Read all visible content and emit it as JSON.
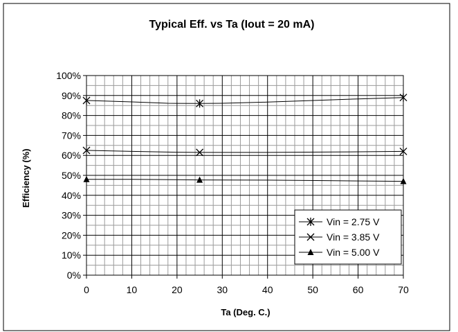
{
  "chart_data": {
    "type": "line",
    "title": "Typical Eff. vs Ta (Iout = 20 mA)",
    "xlabel": "Ta (Deg. C.)",
    "ylabel": "Efficiency (%)",
    "xlim": [
      0,
      70
    ],
    "ylim": [
      0,
      100
    ],
    "x_ticks": [
      0,
      10,
      20,
      30,
      40,
      50,
      60,
      70
    ],
    "y_ticks": [
      0,
      10,
      20,
      30,
      40,
      50,
      60,
      70,
      80,
      90,
      100
    ],
    "x_tick_labels": [
      "0",
      "10",
      "20",
      "30",
      "40",
      "50",
      "60",
      "70"
    ],
    "y_tick_labels": [
      "0%",
      "10%",
      "20%",
      "30%",
      "40%",
      "50%",
      "60%",
      "70%",
      "80%",
      "90%",
      "100%"
    ],
    "grid": "major and minor",
    "legend_position": "bottom-right",
    "series": [
      {
        "name": "Vin = 2.75 V",
        "marker": "asterisk",
        "color": "#000000",
        "x": [
          0,
          25,
          70
        ],
        "y": [
          87.5,
          86,
          89
        ],
        "curve": [
          [
            0,
            87.5
          ],
          [
            10,
            86.8
          ],
          [
            18,
            86.1
          ],
          [
            25,
            86
          ],
          [
            30,
            86.1
          ],
          [
            40,
            86.7
          ],
          [
            50,
            87.5
          ],
          [
            60,
            88.3
          ],
          [
            70,
            89
          ]
        ]
      },
      {
        "name": "Vin = 3.85 V",
        "marker": "x",
        "color": "#000000",
        "x": [
          0,
          25,
          70
        ],
        "y": [
          62.5,
          61.5,
          62
        ],
        "curve": [
          [
            0,
            62.5
          ],
          [
            10,
            62.0
          ],
          [
            20,
            61.6
          ],
          [
            25,
            61.5
          ],
          [
            40,
            61.5
          ],
          [
            55,
            61.7
          ],
          [
            70,
            62
          ]
        ]
      },
      {
        "name": "Vin = 5.00 V",
        "marker": "triangle",
        "color": "#000000",
        "x": [
          0,
          25,
          70
        ],
        "y": [
          48,
          47.7,
          47
        ],
        "curve": [
          [
            0,
            48
          ],
          [
            10,
            48
          ],
          [
            20,
            47.8
          ],
          [
            25,
            47.7
          ],
          [
            40,
            47.6
          ],
          [
            55,
            47.3
          ],
          [
            70,
            47
          ]
        ]
      }
    ]
  }
}
